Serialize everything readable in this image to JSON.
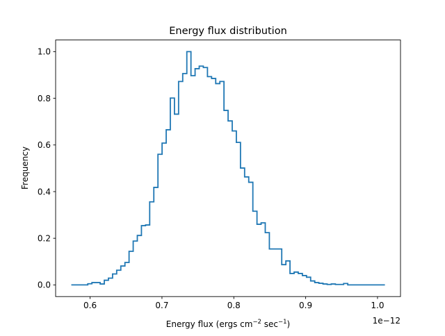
{
  "chart_data": {
    "type": "step-histogram",
    "title": "Energy flux distribution",
    "xlabel": "Energy flux (ergs cm",
    "xlabel_sup1": "−2",
    "xlabel_mid": " sec",
    "xlabel_sup2": "−1",
    "xlabel_end": ")",
    "ylabel": "Frequency",
    "x_offset_label": "1e−12",
    "xlim": [
      0.552,
      1.032
    ],
    "ylim": [
      -0.05,
      1.05
    ],
    "xticks": [
      0.6,
      0.7,
      0.8,
      0.9,
      1.0
    ],
    "xtick_labels": [
      "0.6",
      "0.7",
      "0.8",
      "0.9",
      "1.0"
    ],
    "yticks": [
      0.0,
      0.2,
      0.4,
      0.6,
      0.8,
      1.0
    ],
    "ytick_labels": [
      "0.0",
      "0.2",
      "0.4",
      "0.6",
      "0.8",
      "1.0"
    ],
    "grid": false,
    "line_color": "#1f77b4",
    "bin_range": [
      0.5738,
      1.0103
    ],
    "values": [
      0,
      0,
      0,
      0,
      0.005,
      0.01,
      0.01,
      0.004,
      0.02,
      0.029,
      0.047,
      0.063,
      0.081,
      0.096,
      0.144,
      0.188,
      0.212,
      0.254,
      0.257,
      0.356,
      0.418,
      0.56,
      0.608,
      0.665,
      0.801,
      0.732,
      0.872,
      0.906,
      1.0,
      0.897,
      0.927,
      0.938,
      0.932,
      0.893,
      0.885,
      0.863,
      0.872,
      0.748,
      0.703,
      0.66,
      0.611,
      0.501,
      0.463,
      0.44,
      0.316,
      0.26,
      0.266,
      0.224,
      0.154,
      0.154,
      0.154,
      0.087,
      0.103,
      0.049,
      0.055,
      0.049,
      0.04,
      0.033,
      0.017,
      0.01,
      0.007,
      0.004,
      0.002,
      0.004,
      0.002,
      0.002,
      0.006,
      0,
      0,
      0,
      0,
      0,
      0,
      0,
      0,
      0
    ]
  }
}
